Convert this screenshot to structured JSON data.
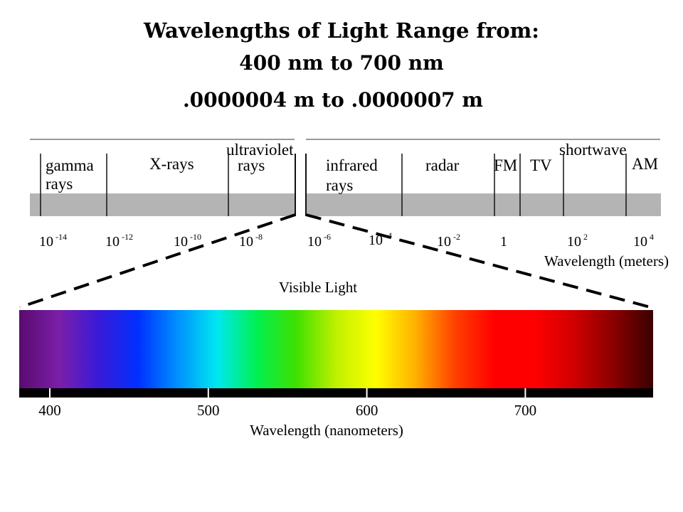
{
  "title": {
    "line1": "Wavelengths of Light Range from:",
    "line2": "400 nm to 700 nm",
    "line3": ".0000004 m to .0000007 m"
  },
  "spectrum": {
    "regions": [
      {
        "id": "gamma",
        "lines": [
          "gamma",
          "rays"
        ]
      },
      {
        "id": "xrays",
        "lines": [
          "X-rays"
        ]
      },
      {
        "id": "ultraviolet",
        "lines": [
          "ultraviolet",
          "rays"
        ]
      },
      {
        "id": "infrared",
        "lines": [
          "infrared",
          "rays"
        ]
      },
      {
        "id": "radar",
        "lines": [
          "radar"
        ]
      },
      {
        "id": "fm",
        "lines": [
          "FM"
        ]
      },
      {
        "id": "tv",
        "lines": [
          "TV"
        ]
      },
      {
        "id": "shortwave",
        "lines": [
          "shortwave"
        ]
      },
      {
        "id": "am",
        "lines": [
          "AM"
        ]
      }
    ],
    "ticks": [
      {
        "base": "10",
        "exp": "-14"
      },
      {
        "base": "10",
        "exp": "-12"
      },
      {
        "base": "10",
        "exp": "-10"
      },
      {
        "base": "10",
        "exp": "-8"
      },
      {
        "base": "10",
        "exp": "-6"
      },
      {
        "base": "10",
        "exp": "-4"
      },
      {
        "base": "10",
        "exp": "-2"
      },
      {
        "base": "1",
        "exp": ""
      },
      {
        "base": "10",
        "exp": "2"
      },
      {
        "base": "10",
        "exp": "4"
      }
    ],
    "axis_label": "Wavelength (meters)"
  },
  "visible": {
    "label": "Visible Light",
    "ticks": [
      "400",
      "500",
      "600",
      "700"
    ],
    "axis_label": "Wavelength (nanometers)",
    "colors": [
      "#5a0a6e",
      "#7a1fa8",
      "#3a1ad8",
      "#0030ff",
      "#0090ff",
      "#00e8f0",
      "#00f050",
      "#40e000",
      "#c0f000",
      "#ffff00",
      "#ffb000",
      "#ff4000",
      "#ff0000",
      "#ff0000",
      "#d00000",
      "#8a0000",
      "#3a0000"
    ]
  }
}
